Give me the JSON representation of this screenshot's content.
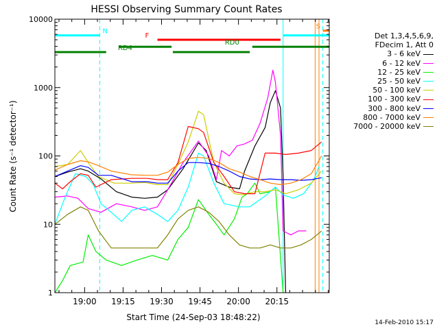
{
  "chart_data": {
    "type": "line",
    "title": "HESSI Observing Summary Count Rates",
    "xlabel": "Start Time (24-Sep-03 18:48:22)",
    "ylabel": "Count Rate (s⁻¹ detector⁻¹)",
    "x_unit": "minutes after 18:48:22",
    "xlim": [
      0,
      107
    ],
    "ylim": [
      1,
      10000
    ],
    "yscale": "log",
    "grid": false,
    "legend_position": "right",
    "x_ticks": [
      {
        "x": 11.6,
        "label": "19:00"
      },
      {
        "x": 26.6,
        "label": "19:15"
      },
      {
        "x": 41.6,
        "label": "19:30"
      },
      {
        "x": 56.6,
        "label": "19:45"
      },
      {
        "x": 71.6,
        "label": "20:00"
      },
      {
        "x": 86.6,
        "label": "20:15"
      }
    ],
    "y_ticks": [
      {
        "y": 1,
        "label": "1"
      },
      {
        "y": 10,
        "label": "10"
      },
      {
        "y": 100,
        "label": "100"
      },
      {
        "y": 1000,
        "label": "1000"
      },
      {
        "y": 10000,
        "label": "10000"
      }
    ],
    "legend": {
      "header": [
        "Det 1,3,4,5,6,9,",
        "FDecim 1, Att 0"
      ]
    },
    "series": [
      {
        "name": "3 - 6 keV",
        "color": "#000000",
        "points": [
          [
            0,
            50
          ],
          [
            5,
            58
          ],
          [
            10,
            65
          ],
          [
            13,
            60
          ],
          [
            18,
            46
          ],
          [
            24,
            30
          ],
          [
            30,
            25
          ],
          [
            35,
            24
          ],
          [
            40,
            25
          ],
          [
            44,
            32
          ],
          [
            50,
            65
          ],
          [
            56,
            155
          ],
          [
            59,
            120
          ],
          [
            63,
            42
          ],
          [
            68,
            35
          ],
          [
            72,
            33
          ],
          [
            74,
            60
          ],
          [
            78,
            140
          ],
          [
            82,
            260
          ],
          [
            84,
            600
          ],
          [
            86,
            900
          ],
          [
            88,
            500
          ],
          [
            89,
            50
          ],
          [
            90,
            1
          ]
        ]
      },
      {
        "name": "6 - 12 keV",
        "color": "#ff00ff",
        "points": [
          [
            0,
            25
          ],
          [
            5,
            26
          ],
          [
            9,
            24
          ],
          [
            13,
            17
          ],
          [
            18,
            15
          ],
          [
            24,
            20
          ],
          [
            30,
            18
          ],
          [
            35,
            16
          ],
          [
            40,
            18
          ],
          [
            44,
            32
          ],
          [
            50,
            80
          ],
          [
            56,
            165
          ],
          [
            60,
            100
          ],
          [
            63,
            45
          ],
          [
            65,
            120
          ],
          [
            68,
            100
          ],
          [
            71,
            140
          ],
          [
            74,
            150
          ],
          [
            77,
            170
          ],
          [
            80,
            300
          ],
          [
            83,
            700
          ],
          [
            85,
            1800
          ],
          [
            86,
            1200
          ],
          [
            88,
            200
          ],
          [
            89,
            8
          ],
          [
            92,
            7
          ],
          [
            95,
            8
          ],
          [
            98,
            8
          ]
        ]
      },
      {
        "name": "12 - 25 keV",
        "color": "#00ee00",
        "points": [
          [
            0,
            1
          ],
          [
            3,
            1.5
          ],
          [
            6,
            2.5
          ],
          [
            11,
            2.8
          ],
          [
            13,
            7
          ],
          [
            16,
            4
          ],
          [
            20,
            3
          ],
          [
            26,
            2.5
          ],
          [
            32,
            3
          ],
          [
            38,
            3.5
          ],
          [
            44,
            3
          ],
          [
            48,
            6
          ],
          [
            52,
            9
          ],
          [
            56,
            23
          ],
          [
            60,
            14
          ],
          [
            63,
            10
          ],
          [
            66,
            7
          ],
          [
            70,
            12
          ],
          [
            73,
            25
          ],
          [
            75,
            28
          ],
          [
            78,
            40
          ],
          [
            80,
            28
          ],
          [
            84,
            30
          ],
          [
            86,
            35
          ],
          [
            89,
            1
          ]
        ]
      },
      {
        "name": "25 - 50 keV",
        "color": "#00ffff",
        "points": [
          [
            0,
            10
          ],
          [
            4,
            25
          ],
          [
            8,
            55
          ],
          [
            12,
            50
          ],
          [
            15,
            38
          ],
          [
            18,
            20
          ],
          [
            22,
            15
          ],
          [
            26,
            11
          ],
          [
            30,
            16
          ],
          [
            35,
            18
          ],
          [
            40,
            14
          ],
          [
            44,
            11
          ],
          [
            48,
            16
          ],
          [
            52,
            35
          ],
          [
            56,
            110
          ],
          [
            58,
            100
          ],
          [
            62,
            40
          ],
          [
            66,
            20
          ],
          [
            72,
            18
          ],
          [
            76,
            18
          ],
          [
            82,
            26
          ],
          [
            86,
            35
          ],
          [
            89,
            27
          ],
          [
            93,
            24
          ],
          [
            97,
            28
          ],
          [
            101,
            45
          ],
          [
            103,
            70
          ]
        ]
      },
      {
        "name": "50 - 100 keV",
        "color": "#cccc00",
        "points": [
          [
            0,
            70
          ],
          [
            5,
            75
          ],
          [
            10,
            120
          ],
          [
            13,
            80
          ],
          [
            17,
            50
          ],
          [
            23,
            40
          ],
          [
            30,
            40
          ],
          [
            35,
            41
          ],
          [
            40,
            38
          ],
          [
            44,
            38
          ],
          [
            48,
            75
          ],
          [
            52,
            160
          ],
          [
            56,
            450
          ],
          [
            58,
            400
          ],
          [
            62,
            80
          ],
          [
            66,
            40
          ],
          [
            70,
            28
          ],
          [
            73,
            27
          ],
          [
            78,
            30
          ],
          [
            82,
            30
          ],
          [
            86,
            32
          ],
          [
            90,
            28
          ],
          [
            95,
            32
          ],
          [
            100,
            40
          ],
          [
            104,
            60
          ]
        ]
      },
      {
        "name": "100 - 300 keV",
        "color": "#ff0000",
        "points": [
          [
            0,
            40
          ],
          [
            3,
            33
          ],
          [
            6,
            42
          ],
          [
            10,
            55
          ],
          [
            13,
            52
          ],
          [
            16,
            35
          ],
          [
            22,
            45
          ],
          [
            30,
            47
          ],
          [
            36,
            47
          ],
          [
            40,
            45
          ],
          [
            44,
            45
          ],
          [
            48,
            80
          ],
          [
            52,
            270
          ],
          [
            56,
            250
          ],
          [
            58,
            220
          ],
          [
            62,
            80
          ],
          [
            66,
            50
          ],
          [
            70,
            30
          ],
          [
            74,
            28
          ],
          [
            78,
            28
          ],
          [
            82,
            110
          ],
          [
            86,
            110
          ],
          [
            90,
            105
          ],
          [
            95,
            110
          ],
          [
            100,
            120
          ],
          [
            104,
            160
          ]
        ]
      },
      {
        "name": "300 - 800 keV",
        "color": "#0000ff",
        "points": [
          [
            0,
            50
          ],
          [
            5,
            60
          ],
          [
            10,
            72
          ],
          [
            13,
            68
          ],
          [
            17,
            52
          ],
          [
            22,
            52
          ],
          [
            30,
            42
          ],
          [
            36,
            42
          ],
          [
            40,
            40
          ],
          [
            44,
            40
          ],
          [
            48,
            60
          ],
          [
            52,
            80
          ],
          [
            56,
            80
          ],
          [
            60,
            78
          ],
          [
            64,
            70
          ],
          [
            68,
            60
          ],
          [
            72,
            50
          ],
          [
            76,
            46
          ],
          [
            80,
            45
          ],
          [
            84,
            46
          ],
          [
            88,
            45
          ],
          [
            92,
            45
          ],
          [
            96,
            44
          ],
          [
            100,
            45
          ],
          [
            104,
            48
          ]
        ]
      },
      {
        "name": "800 - 7000 keV",
        "color": "#ff8000",
        "points": [
          [
            0,
            62
          ],
          [
            5,
            75
          ],
          [
            10,
            85
          ],
          [
            13,
            82
          ],
          [
            17,
            72
          ],
          [
            22,
            60
          ],
          [
            30,
            53
          ],
          [
            36,
            52
          ],
          [
            40,
            52
          ],
          [
            44,
            58
          ],
          [
            48,
            75
          ],
          [
            52,
            92
          ],
          [
            56,
            95
          ],
          [
            60,
            92
          ],
          [
            64,
            80
          ],
          [
            68,
            65
          ],
          [
            72,
            58
          ],
          [
            76,
            50
          ],
          [
            80,
            45
          ],
          [
            84,
            40
          ],
          [
            88,
            38
          ],
          [
            92,
            40
          ],
          [
            96,
            45
          ],
          [
            100,
            55
          ],
          [
            104,
            100
          ]
        ]
      },
      {
        "name": "7000 - 20000 keV",
        "color": "#808000",
        "points": [
          [
            0,
            10
          ],
          [
            5,
            14
          ],
          [
            10,
            18
          ],
          [
            13,
            16
          ],
          [
            17,
            8
          ],
          [
            22,
            4.5
          ],
          [
            30,
            4.5
          ],
          [
            36,
            4.5
          ],
          [
            40,
            4.5
          ],
          [
            44,
            7
          ],
          [
            48,
            12
          ],
          [
            52,
            16
          ],
          [
            56,
            18
          ],
          [
            60,
            15
          ],
          [
            64,
            11
          ],
          [
            68,
            7
          ],
          [
            72,
            5
          ],
          [
            76,
            4.5
          ],
          [
            80,
            4.5
          ],
          [
            84,
            5
          ],
          [
            88,
            4.5
          ],
          [
            92,
            4.5
          ],
          [
            96,
            5
          ],
          [
            100,
            6
          ],
          [
            104,
            8
          ]
        ]
      }
    ],
    "flags": [
      {
        "label": "N",
        "color": "#00ffff",
        "y": 5800,
        "segments": [
          [
            0,
            17.5
          ],
          [
            89,
            107
          ]
        ]
      },
      {
        "label": "F",
        "color": "#ff0000",
        "y": 5000,
        "segments": [
          [
            40,
            88
          ]
        ]
      },
      {
        "label": "RD0",
        "color": "#008000",
        "y": 3950,
        "segments": [
          [
            25,
            45.5
          ],
          [
            77,
            107
          ]
        ]
      },
      {
        "label": "RD4",
        "color": "#008000",
        "y": 3300,
        "segments": [
          [
            0,
            20
          ],
          [
            46,
            76
          ]
        ]
      },
      {
        "label": "S",
        "color": "#ff8000",
        "y": 6800,
        "segments": [
          [
            104.5,
            107
          ]
        ]
      }
    ],
    "vertical_lines": [
      {
        "x": 0,
        "color": "#00ffff",
        "dashed": false
      },
      {
        "x": 17.5,
        "color": "#00ffff",
        "dashed": true
      },
      {
        "x": 89,
        "color": "#00ffff",
        "dashed": false
      },
      {
        "x": 101.5,
        "color": "#ff8000",
        "dashed": false
      },
      {
        "x": 103,
        "color": "#ff8000",
        "dashed": false
      },
      {
        "x": 104.5,
        "color": "#00ffff",
        "dashed": true
      }
    ]
  },
  "timestamp": "14-Feb-2010 15:17"
}
